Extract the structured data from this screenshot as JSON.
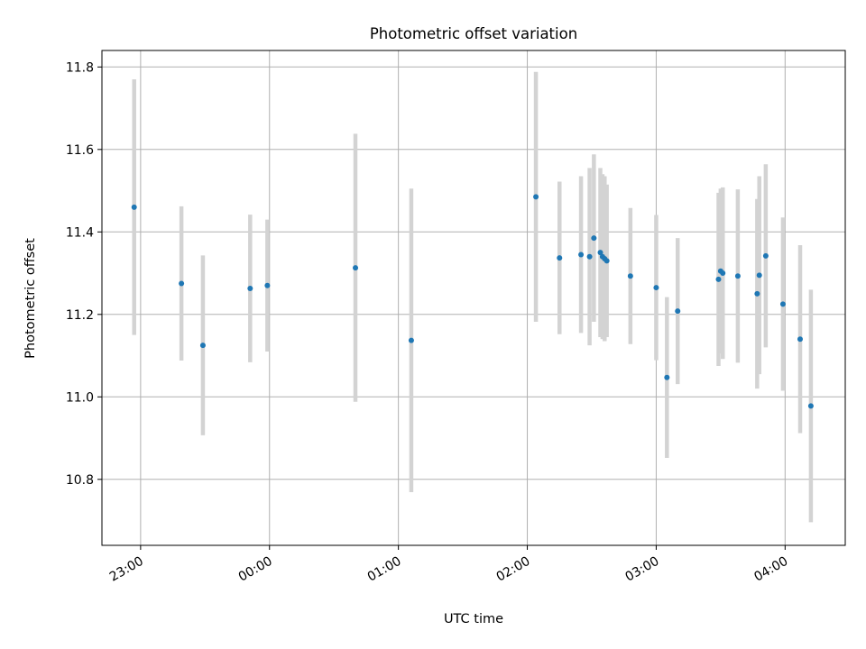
{
  "chart_data": {
    "type": "scatter",
    "title": "Photometric offset variation",
    "xlabel": "UTC time",
    "ylabel": "Photometric offset",
    "x_unit": "UTC time",
    "xlim": [
      "22:42",
      "04:28"
    ],
    "ylim": [
      10.64,
      11.84
    ],
    "grid": true,
    "x_ticks": [
      "23:00",
      "00:00",
      "01:00",
      "02:00",
      "03:00",
      "04:00"
    ],
    "y_ticks": [
      "10.8",
      "11.0",
      "11.2",
      "11.4",
      "11.6",
      "11.8"
    ],
    "series": [
      {
        "points": [
          {
            "x": "22:57",
            "y": 11.46,
            "yerr": 0.31
          },
          {
            "x": "23:19",
            "y": 11.275,
            "yerr": 0.187
          },
          {
            "x": "23:29",
            "y": 11.125,
            "yerr": 0.218
          },
          {
            "x": "23:51",
            "y": 11.263,
            "yerr": 0.179
          },
          {
            "x": "23:59",
            "y": 11.27,
            "yerr": 0.16
          },
          {
            "x": "00:40",
            "y": 11.313,
            "yerr": 0.325
          },
          {
            "x": "01:06",
            "y": 11.137,
            "yerr": 0.368
          },
          {
            "x": "02:04",
            "y": 11.485,
            "yerr": 0.303
          },
          {
            "x": "02:15",
            "y": 11.337,
            "yerr": 0.185
          },
          {
            "x": "02:25",
            "y": 11.345,
            "yerr": 0.19
          },
          {
            "x": "02:29",
            "y": 11.34,
            "yerr": 0.215
          },
          {
            "x": "02:31",
            "y": 11.385,
            "yerr": 0.203
          },
          {
            "x": "02:34",
            "y": 11.35,
            "yerr": 0.205
          },
          {
            "x": "02:35",
            "y": 11.34,
            "yerr": 0.2
          },
          {
            "x": "02:36",
            "y": 11.335,
            "yerr": 0.2
          },
          {
            "x": "02:37",
            "y": 11.33,
            "yerr": 0.185
          },
          {
            "x": "02:48",
            "y": 11.293,
            "yerr": 0.165
          },
          {
            "x": "03:00",
            "y": 11.265,
            "yerr": 0.176
          },
          {
            "x": "03:05",
            "y": 11.047,
            "yerr": 0.195
          },
          {
            "x": "03:10",
            "y": 11.208,
            "yerr": 0.177
          },
          {
            "x": "03:29",
            "y": 11.285,
            "yerr": 0.21
          },
          {
            "x": "03:30",
            "y": 11.305,
            "yerr": 0.2
          },
          {
            "x": "03:31",
            "y": 11.3,
            "yerr": 0.208
          },
          {
            "x": "03:38",
            "y": 11.293,
            "yerr": 0.21
          },
          {
            "x": "03:47",
            "y": 11.25,
            "yerr": 0.23
          },
          {
            "x": "03:48",
            "y": 11.295,
            "yerr": 0.24
          },
          {
            "x": "03:51",
            "y": 11.342,
            "yerr": 0.222
          },
          {
            "x": "03:59",
            "y": 11.225,
            "yerr": 0.21
          },
          {
            "x": "04:07",
            "y": 11.14,
            "yerr": 0.228
          },
          {
            "x": "04:12",
            "y": 10.978,
            "yerr": 0.282
          }
        ]
      }
    ],
    "colors": {
      "point": "#1f77b4",
      "errorbar": "#d3d3d3",
      "grid": "#b0b0b0",
      "axes": "#000000"
    }
  }
}
